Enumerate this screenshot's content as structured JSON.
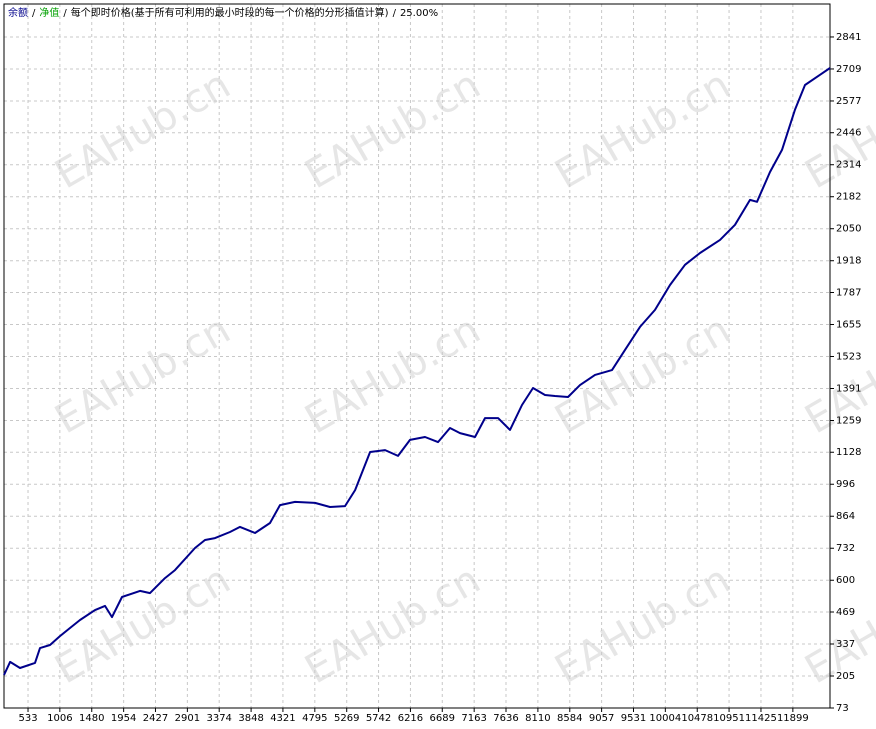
{
  "chart_data": {
    "type": "line",
    "legend": [
      {
        "name": "余额",
        "color": "#00008b"
      },
      {
        "name": "净值",
        "color": "#00a000"
      }
    ],
    "separator": "/",
    "subtitle": "每个即时价格(基于所有可利用的最小时段的每一个价格的分形插值计算)",
    "modelling_quality": "25.00%",
    "watermark": "EAHub.cn",
    "series": [
      {
        "name": "余额",
        "color": "#00008b",
        "x": [
          176,
          266,
          414,
          637,
          711,
          860,
          1009,
          1157,
          1306,
          1529,
          1677,
          1781,
          1930,
          2197,
          2346,
          2569,
          2717,
          3015,
          3163,
          3312,
          3535,
          3683,
          3906,
          4129,
          4278,
          4501,
          4798,
          5021,
          5244,
          5393,
          5616,
          5839,
          6031,
          6210,
          6432,
          6626,
          6804,
          6953,
          7176,
          7324,
          7518,
          7696,
          7874,
          8037,
          8216,
          8364,
          8557,
          8736,
          8959,
          9211,
          9404,
          9627,
          9850,
          10073,
          10296,
          10519,
          10816,
          11039,
          11262,
          11366,
          11559,
          11737,
          11930,
          12079,
          12302,
          12451
        ],
        "values": [
          209,
          263,
          238,
          259,
          320,
          333,
          370,
          403,
          436,
          477,
          494,
          448,
          531,
          556,
          547,
          609,
          642,
          733,
          766,
          774,
          799,
          820,
          795,
          836,
          910,
          923,
          919,
          902,
          906,
          972,
          1129,
          1137,
          1113,
          1179,
          1191,
          1170,
          1228,
          1207,
          1191,
          1269,
          1269,
          1220,
          1323,
          1393,
          1364,
          1360,
          1356,
          1405,
          1447,
          1467,
          1550,
          1645,
          1715,
          1818,
          1901,
          1950,
          2004,
          2066,
          2169,
          2161,
          2284,
          2375,
          2540,
          2643,
          2685,
          2713
        ]
      }
    ],
    "xlim": [
      176,
      12451
    ],
    "xticks": [
      533,
      1006,
      1480,
      1954,
      2427,
      2901,
      3374,
      3848,
      4321,
      4795,
      5269,
      5742,
      6216,
      6689,
      7163,
      7636,
      8110,
      8584,
      9057,
      9531,
      10004,
      10478,
      10951,
      11425,
      11899
    ],
    "ylim": [
      73,
      2977
    ],
    "yticks": [
      73,
      205,
      337,
      469,
      600,
      732,
      864,
      996,
      1128,
      1259,
      1391,
      1523,
      1655,
      1787,
      1918,
      2050,
      2182,
      2314,
      2446,
      2577,
      2709,
      2841
    ],
    "grid": true
  }
}
